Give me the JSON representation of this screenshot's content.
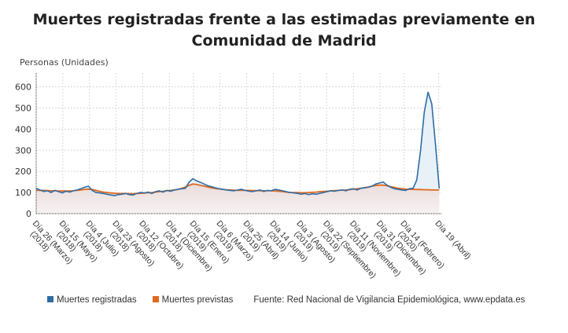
{
  "chart_data": {
    "type": "line",
    "title": "Muertes registradas frente a las estimadas previamente en Comunidad de Madrid",
    "ylabel": "Personas (Unidades)",
    "xlabel": "",
    "ylim": [
      0,
      665
    ],
    "yticks": [
      0,
      100,
      200,
      300,
      400,
      500,
      600
    ],
    "grid": true,
    "legend_placement": "bottom",
    "x_start": "2018-03-26",
    "x_step_days": 7,
    "xticks": [
      {
        "date": "2018-03-26",
        "l1": "Día 26 (Marzo)",
        "l2": "(2018)"
      },
      {
        "date": "2018-05-15",
        "l1": "Día 15 (Mayo)",
        "l2": "(2018)"
      },
      {
        "date": "2018-07-04",
        "l1": "Día 4 (Julio)",
        "l2": "(2018)"
      },
      {
        "date": "2018-08-23",
        "l1": "Día 23 (Agosto)",
        "l2": "(2018)"
      },
      {
        "date": "2018-10-12",
        "l1": "Día 12 (Octubre)",
        "l2": "(2018)"
      },
      {
        "date": "2018-12-01",
        "l1": "Día 1 (Diciembre)",
        "l2": "(2018)"
      },
      {
        "date": "2019-01-15",
        "l1": "Día 15 (Enero)",
        "l2": "(2019)"
      },
      {
        "date": "2019-03-06",
        "l1": "Día 6 (Marzo)",
        "l2": "(2019)"
      },
      {
        "date": "2019-04-25",
        "l1": "Día 25 (Abril)",
        "l2": "(2019)"
      },
      {
        "date": "2019-06-14",
        "l1": "Día 14 (Junio)",
        "l2": "(2019)"
      },
      {
        "date": "2019-08-03",
        "l1": "Día 3 (Agosto)",
        "l2": "(2019)"
      },
      {
        "date": "2019-09-22",
        "l1": "Día 22 (Septiembre)",
        "l2": "(2019)"
      },
      {
        "date": "2019-11-11",
        "l1": "Día 11 (Noviembre)",
        "l2": "(2019)"
      },
      {
        "date": "2019-12-31",
        "l1": "Día 31 (Diciembre)",
        "l2": "(2019)"
      },
      {
        "date": "2020-02-14",
        "l1": "Día 14 (Febrero)",
        "l2": "(2020)"
      },
      {
        "date": "2020-04-19",
        "l1": "Día 19 (Abril)",
        "l2": ""
      }
    ],
    "series": [
      {
        "name": "Muertes registradas",
        "color": "#2f6da4",
        "values": [
          120,
          112,
          105,
          108,
          100,
          110,
          104,
          98,
          106,
          102,
          108,
          112,
          118,
          125,
          130,
          110,
          100,
          98,
          95,
          92,
          88,
          85,
          90,
          92,
          95,
          90,
          88,
          96,
          100,
          98,
          102,
          95,
          104,
          108,
          102,
          110,
          106,
          112,
          115,
          118,
          120,
          150,
          165,
          155,
          148,
          140,
          132,
          128,
          122,
          118,
          115,
          112,
          110,
          108,
          112,
          115,
          110,
          106,
          104,
          108,
          112,
          105,
          110,
          108,
          115,
          112,
          108,
          104,
          100,
          98,
          96,
          92,
          95,
          90,
          94,
          92,
          96,
          100,
          104,
          108,
          106,
          110,
          112,
          108,
          115,
          118,
          112,
          120,
          122,
          125,
          130,
          140,
          145,
          150,
          135,
          125,
          118,
          115,
          112,
          110,
          118,
          120,
          160,
          300,
          480,
          575,
          520,
          330,
          120
        ]
      },
      {
        "name": "Muertes previstas",
        "color": "#e0691f",
        "values": [
          110,
          110,
          110,
          109,
          108,
          108,
          107,
          107,
          107,
          107,
          108,
          110,
          112,
          115,
          116,
          114,
          110,
          106,
          102,
          100,
          98,
          96,
          95,
          95,
          95,
          94,
          94,
          95,
          96,
          97,
          99,
          100,
          102,
          104,
          106,
          108,
          110,
          112,
          115,
          120,
          126,
          134,
          140,
          138,
          134,
          130,
          126,
          122,
          119,
          117,
          115,
          113,
          112,
          111,
          110,
          110,
          110,
          110,
          109,
          109,
          108,
          108,
          108,
          108,
          107,
          106,
          104,
          102,
          100,
          100,
          100,
          99,
          99,
          100,
          101,
          102,
          104,
          105,
          106,
          108,
          109,
          110,
          111,
          112,
          114,
          116,
          118,
          120,
          123,
          126,
          130,
          133,
          135,
          135,
          132,
          128,
          124,
          120,
          118,
          116,
          115,
          115,
          114,
          114,
          113,
          113,
          112,
          112,
          112
        ]
      }
    ]
  },
  "legend": {
    "items": [
      {
        "label": "Muertes registradas",
        "color": "#2f6da4"
      },
      {
        "label": "Muertes previstas",
        "color": "#e0691f"
      }
    ],
    "source": "Fuente: Red Nacional de Vigilancia Epidemiológica, www.epdata.es"
  }
}
